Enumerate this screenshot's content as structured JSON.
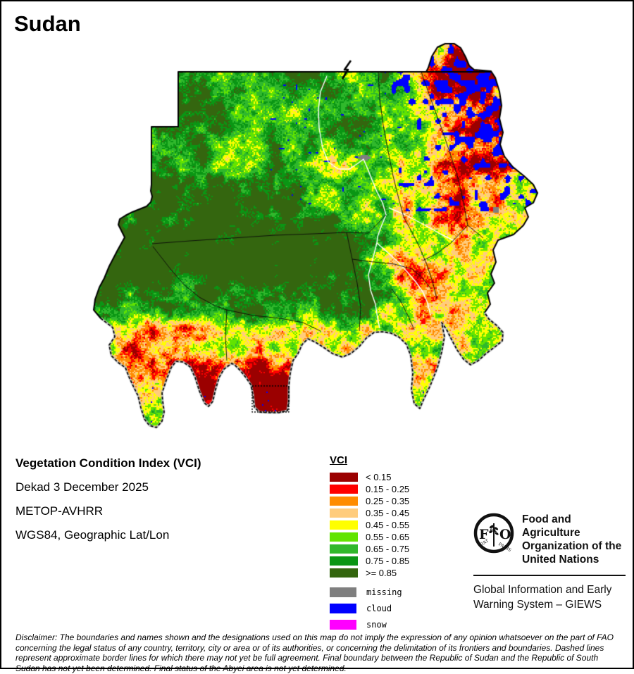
{
  "title": "Sudan",
  "info": {
    "product_title": "Vegetation Condition Index (VCI)",
    "dekad": "Dekad 3 December 2025",
    "sensor": "METOP-AVHRR",
    "projection": "WGS84, Geographic Lat/Lon"
  },
  "legend": {
    "heading": "VCI",
    "classes": [
      {
        "label": "< 0.15",
        "color": "#9B0000"
      },
      {
        "label": "0.15 - 0.25",
        "color": "#FF0000"
      },
      {
        "label": "0.25 - 0.35",
        "color": "#FF8C00"
      },
      {
        "label": "0.35 - 0.45",
        "color": "#FFCC7D"
      },
      {
        "label": "0.45 - 0.55",
        "color": "#FFFF00"
      },
      {
        "label": "0.55 - 0.65",
        "color": "#62E400"
      },
      {
        "label": "0.65 - 0.75",
        "color": "#30B82C"
      },
      {
        "label": "0.75 - 0.85",
        "color": "#0A9614"
      },
      {
        "label": ">= 0.85",
        "color": "#34660F"
      }
    ],
    "extra_classes": [
      {
        "label": "missing",
        "color": "#7F7F7F"
      },
      {
        "label": "cloud",
        "color": "#0000FF"
      },
      {
        "label": "snow",
        "color": "#FF00FF"
      }
    ]
  },
  "branding": {
    "logo_letters": "FAO",
    "logo_motto_left": "FIAT",
    "logo_motto_right": "PANIS",
    "org_name": "Food and Agriculture Organization of the United Nations",
    "giews": "Global Information and Early Warning System – GIEWS"
  },
  "disclaimer": "Disclaimer: The boundaries and names shown and the designations used on this map do not imply the expression of any opinion whatsoever on the part of FAO concerning the legal status of any country, territory, city or area or of its authorities, or concerning the delimitation of its frontiers and boundaries. Dashed lines represent approximate border lines for which there may not yet be full agreement.  Final boundary between the Republic of Sudan and the Republic of South Sudan has not yet been determined. Final status of the Abyei area is not yet determined."
}
